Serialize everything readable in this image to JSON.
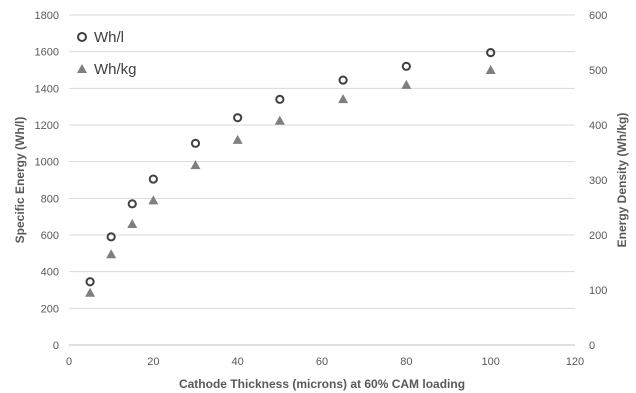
{
  "chart_data": {
    "type": "scatter",
    "xlabel": "Cathode Thickness (microns) at 60% CAM loading",
    "ylabel": "Specific Energy (Wh/l)",
    "y2label": "Energy Density (Wh/kg)",
    "xlim": [
      0,
      120
    ],
    "ylim": [
      0,
      1800
    ],
    "y2lim": [
      0,
      600
    ],
    "xticks": [
      0,
      20,
      40,
      60,
      80,
      100,
      120
    ],
    "yticks": [
      0,
      200,
      400,
      600,
      800,
      1000,
      1200,
      1400,
      1600,
      1800
    ],
    "y2ticks": [
      0,
      100,
      200,
      300,
      400,
      500,
      600
    ],
    "grid": "horizontal",
    "legend_position": "top-left",
    "series": [
      {
        "name": "Wh/l",
        "axis": "left",
        "marker": "open-circle",
        "color": "#404040",
        "x": [
          5,
          10,
          15,
          20,
          30,
          40,
          50,
          65,
          80,
          100
        ],
        "y": [
          345,
          590,
          770,
          905,
          1100,
          1240,
          1340,
          1445,
          1520,
          1595
        ]
      },
      {
        "name": "Wh/kg",
        "axis": "right",
        "marker": "triangle",
        "color": "#7f7f7f",
        "x": [
          5,
          10,
          15,
          20,
          30,
          40,
          50,
          65,
          80,
          100
        ],
        "y": [
          95,
          165,
          220,
          263,
          327,
          373,
          408,
          447,
          473,
          500
        ]
      }
    ]
  }
}
